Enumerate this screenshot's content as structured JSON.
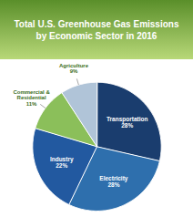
{
  "chart_data": {
    "type": "pie",
    "title": "Total U.S. Greenhouse Gas Emissions",
    "subtitle": "by Economic Sector in 2016",
    "categories": [
      "Transportation",
      "Electricity",
      "Industry",
      "Commercial &\nResidential",
      "Agriculture"
    ],
    "values": [
      28,
      28,
      22,
      11,
      9
    ],
    "value_labels": [
      "28%",
      "28%",
      "22%",
      "11%",
      "9%"
    ],
    "colors": [
      "#1a3d6e",
      "#2e6fad",
      "#2259a0",
      "#8bbf5a",
      "#b0c4d8"
    ],
    "data_labels": true
  }
}
